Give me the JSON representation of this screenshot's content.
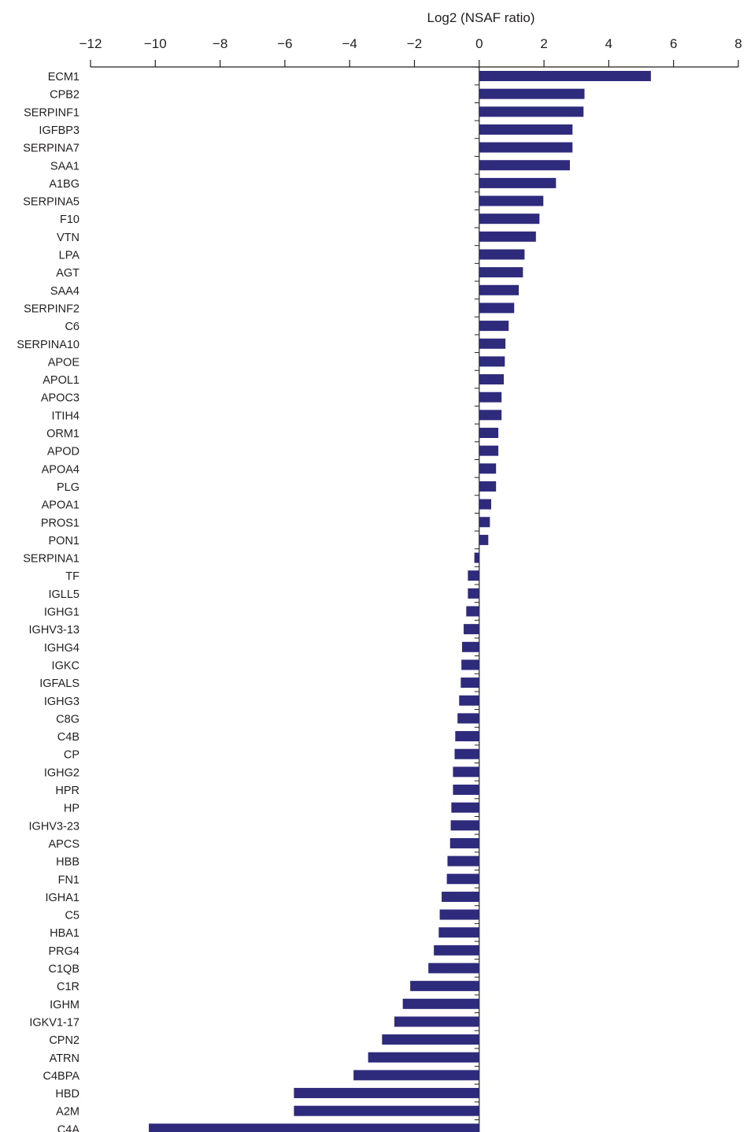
{
  "chart_data": {
    "type": "bar",
    "orientation": "horizontal",
    "xlabel": "Log2 (NSAF ratio)",
    "xlim": [
      -12,
      8
    ],
    "ticks": [
      -12,
      -10,
      -8,
      -6,
      -4,
      -2,
      0,
      2,
      4,
      6,
      8
    ],
    "tick_labels": [
      "−12",
      "−10",
      "−8",
      "−6",
      "−4",
      "−2",
      "0",
      "2",
      "4",
      "6",
      "8"
    ],
    "axis_position": "top",
    "grid": false,
    "bar_color": "#2e2a7c",
    "categories": [
      "ECM1",
      "CPB2",
      "SERPINF1",
      "IGFBP3",
      "SERPINA7",
      "SAA1",
      "A1BG",
      "SERPINA5",
      "F10",
      "VTN",
      "LPA",
      "AGT",
      "SAA4",
      "SERPINF2",
      "C6",
      "SERPINA10",
      "APOE",
      "APOL1",
      "APOC3",
      "ITIH4",
      "ORM1",
      "APOD",
      "APOA4",
      "PLG",
      "APOA1",
      "PROS1",
      "PON1",
      "SERPINA1",
      "TF",
      "IGLL5",
      "IGHG1",
      "IGHV3-13",
      "IGHG4",
      "IGKC",
      "IGFALS",
      "IGHG3",
      "C8G",
      "C4B",
      "CP",
      "IGHG2",
      "HPR",
      "HP",
      "IGHV3-23",
      "APCS",
      "HBB",
      "FN1",
      "IGHA1",
      "C5",
      "HBA1",
      "PRG4",
      "C1QB",
      "C1R",
      "IGHM",
      "IGKV1-17",
      "CPN2",
      "ATRN",
      "C4BPA",
      "HBD",
      "A2M",
      "C4A"
    ],
    "values": [
      5.3,
      3.25,
      3.22,
      2.88,
      2.88,
      2.8,
      2.37,
      1.98,
      1.86,
      1.75,
      1.4,
      1.35,
      1.22,
      1.08,
      0.91,
      0.81,
      0.79,
      0.76,
      0.69,
      0.69,
      0.59,
      0.59,
      0.52,
      0.52,
      0.37,
      0.33,
      0.28,
      -0.15,
      -0.35,
      -0.35,
      -0.4,
      -0.48,
      -0.53,
      -0.55,
      -0.57,
      -0.62,
      -0.67,
      -0.74,
      -0.76,
      -0.81,
      -0.81,
      -0.86,
      -0.88,
      -0.9,
      -0.98,
      -1.0,
      -1.16,
      -1.22,
      -1.25,
      -1.4,
      -1.57,
      -2.13,
      -2.36,
      -2.62,
      -3.0,
      -3.43,
      -3.88,
      -5.72,
      -5.72,
      -10.2
    ]
  }
}
